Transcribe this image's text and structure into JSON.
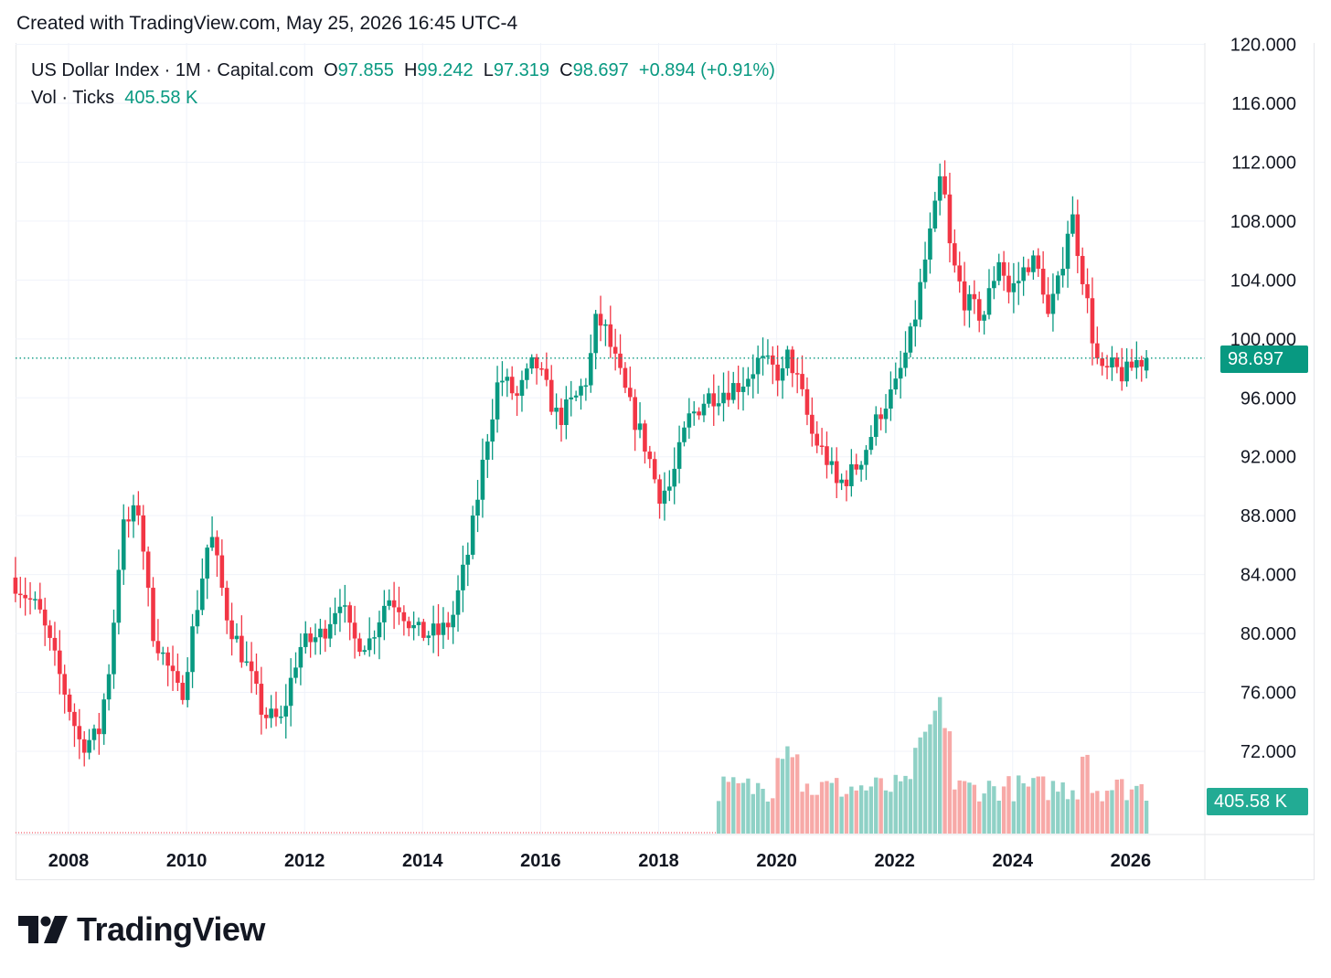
{
  "header": {
    "created_text": "Created with TradingView.com, May 25, 2026 16:45 UTC-4"
  },
  "legend": {
    "symbol": "US Dollar Index · 1M · Capital.com",
    "o_label": "O",
    "o_value": "97.855",
    "h_label": "H",
    "h_value": "99.242",
    "l_label": "L",
    "l_value": "97.319",
    "c_label": "C",
    "c_value": "98.697",
    "change": "+0.894 (+0.91%)",
    "vol_label": "Vol · Ticks",
    "vol_value": "405.58 K"
  },
  "price_tag": "98.697",
  "volume_tag": "405.58 K",
  "brand": {
    "name": "TradingView",
    "icon": "tradingview-logo-icon"
  },
  "colors": {
    "up": "#089981",
    "down": "#f23645",
    "vol_up": "#8fd1c6",
    "vol_down": "#f7a9a7",
    "grid": "#f0f3fa"
  },
  "chart_data": {
    "type": "candlestick",
    "timeframe": "1M",
    "y_ticks": [
      "120.000",
      "116.000",
      "112.000",
      "108.000",
      "104.000",
      "100.000",
      "96.000",
      "92.000",
      "88.000",
      "84.000",
      "80.000",
      "76.000",
      "72.000"
    ],
    "ylim": [
      67,
      120.5
    ],
    "x_ticks": [
      "2008",
      "2010",
      "2012",
      "2014",
      "2016",
      "2018",
      "2020",
      "2022",
      "2024",
      "2026"
    ],
    "last_price": 98.697,
    "series": [
      {
        "name": "US Dollar Index",
        "close_anchors": [
          [
            2007.1,
            83.5
          ],
          [
            2007.5,
            81.5
          ],
          [
            2007.9,
            76.5
          ],
          [
            2008.2,
            72.5
          ],
          [
            2008.5,
            73
          ],
          [
            2008.7,
            78
          ],
          [
            2008.9,
            87
          ],
          [
            2009.2,
            88.5
          ],
          [
            2009.4,
            80.5
          ],
          [
            2009.9,
            75.5
          ],
          [
            2010.4,
            87
          ],
          [
            2010.7,
            81
          ],
          [
            2011.0,
            78
          ],
          [
            2011.3,
            74.5
          ],
          [
            2011.6,
            74
          ],
          [
            2011.9,
            79
          ],
          [
            2012.3,
            80
          ],
          [
            2012.6,
            82.5
          ],
          [
            2012.8,
            79.5
          ],
          [
            2013.1,
            79.5
          ],
          [
            2013.4,
            82.5
          ],
          [
            2013.6,
            82
          ],
          [
            2013.9,
            80
          ],
          [
            2014.3,
            80
          ],
          [
            2014.5,
            81
          ],
          [
            2014.8,
            86
          ],
          [
            2015.1,
            93.5
          ],
          [
            2015.3,
            97.5
          ],
          [
            2015.6,
            96
          ],
          [
            2015.9,
            98.5
          ],
          [
            2016.3,
            94.5
          ],
          [
            2016.6,
            96
          ],
          [
            2016.8,
            97.5
          ],
          [
            2016.95,
            101.5
          ],
          [
            2017.1,
            100.5
          ],
          [
            2017.5,
            95.5
          ],
          [
            2017.8,
            92.5
          ],
          [
            2018.0,
            89.5
          ],
          [
            2018.2,
            90
          ],
          [
            2018.5,
            94.5
          ],
          [
            2018.8,
            96
          ],
          [
            2019.1,
            96.5
          ],
          [
            2019.4,
            97
          ],
          [
            2019.7,
            98.5
          ],
          [
            2020.1,
            97.5
          ],
          [
            2020.2,
            99
          ],
          [
            2020.4,
            96.5
          ],
          [
            2020.6,
            93.5
          ],
          [
            2020.9,
            91.5
          ],
          [
            2021.0,
            90
          ],
          [
            2021.3,
            91
          ],
          [
            2021.5,
            92.5
          ],
          [
            2021.8,
            95.5
          ],
          [
            2022.0,
            96.5
          ],
          [
            2022.3,
            100.5
          ],
          [
            2022.5,
            105
          ],
          [
            2022.7,
            109
          ],
          [
            2022.8,
            111.5
          ],
          [
            2022.95,
            105.5
          ],
          [
            2023.2,
            102.5
          ],
          [
            2023.5,
            101.5
          ],
          [
            2023.7,
            104.5
          ],
          [
            2023.8,
            106
          ],
          [
            2023.9,
            103
          ],
          [
            2024.1,
            104
          ],
          [
            2024.3,
            105.5
          ],
          [
            2024.5,
            104
          ],
          [
            2024.6,
            101.5
          ],
          [
            2024.8,
            104
          ],
          [
            2024.9,
            107
          ],
          [
            2025.0,
            108.5
          ],
          [
            2025.2,
            104
          ],
          [
            2025.4,
            99
          ],
          [
            2025.5,
            97.5
          ],
          [
            2025.7,
            98
          ],
          [
            2025.9,
            97.5
          ],
          [
            2026.1,
            98.5
          ],
          [
            2026.3,
            98.7
          ]
        ]
      }
    ],
    "volume": {
      "name": "Vol · Ticks",
      "start_year": 2019.0,
      "last_value": 405580
    }
  }
}
